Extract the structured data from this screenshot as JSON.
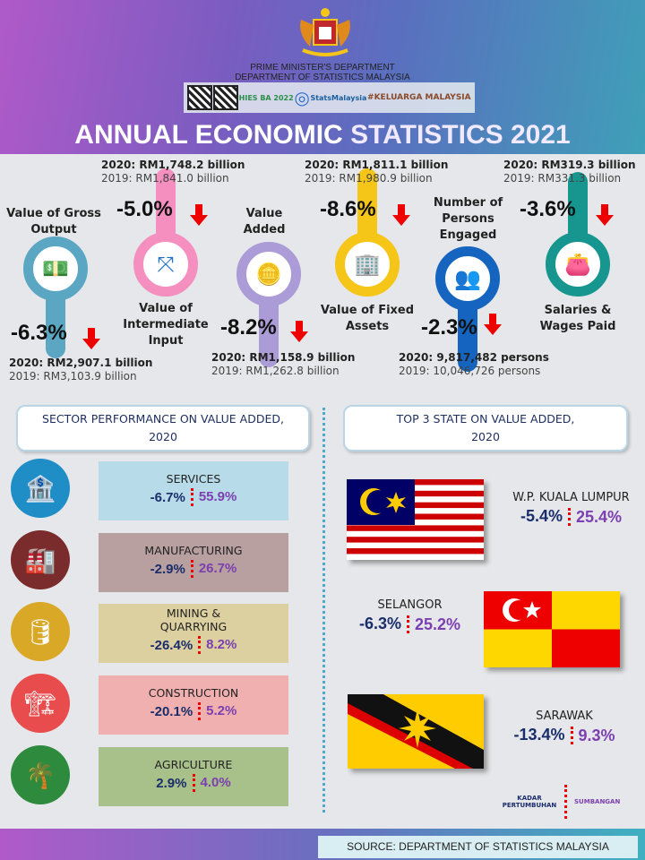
{
  "header": {
    "org_line1": "PRIME MINISTER'S DEPARTMENT",
    "org_line2": "DEPARTMENT OF STATISTICS MALAYSIA",
    "logos": [
      "HIES BA 2022",
      "StatsMalaysia",
      "#KELUARGA MALAYSIA"
    ],
    "title_a": "ANNUAL ECONOMIC",
    "title_b": "STATISTICS 2021"
  },
  "indicators": [
    {
      "label": "Value of Gross Output",
      "change": "-6.3%",
      "v2020": "2020: RM2,907.1 billion",
      "v2019": "2019: RM3,103.9 billion",
      "color": "#5ba7c3"
    },
    {
      "label": "Value of Intermediate Input",
      "change": "-5.0%",
      "v2020": "2020: RM1,748.2 billion",
      "v2019": "2019: RM1,841.0 billion",
      "color": "#f48fbf"
    },
    {
      "label": "Value Added",
      "change": "-8.2%",
      "v2020": "2020: RM1,158.9 billion",
      "v2019": "2019: RM1,262.8 billion",
      "color": "#ab9bd6"
    },
    {
      "label": "Value of Fixed Assets",
      "change": "-8.6%",
      "v2020": "2020: RM1,811.1 billion",
      "v2019": "2019: RM1,980.9 billion",
      "color": "#f5c518"
    },
    {
      "label": "Number of Persons Engaged",
      "change": "-2.3%",
      "v2020": "2020: 9,817,482 persons",
      "v2019": "2019: 10,046,726 persons",
      "color": "#1565c0"
    },
    {
      "label": "Salaries & Wages Paid",
      "change": "-3.6%",
      "v2020": "2020: RM319.3 billion",
      "v2019": "2019: RM331.3 billion",
      "color": "#16968f"
    }
  ],
  "sector": {
    "title": "SECTOR PERFORMANCE ON VALUE ADDED,",
    "year": "2020",
    "items": [
      {
        "name": "SERVICES",
        "growth": "-6.7%",
        "share": "55.9%"
      },
      {
        "name": "MANUFACTURING",
        "growth": "-2.9%",
        "share": "26.7%"
      },
      {
        "name": "MINING & QUARRYING",
        "growth": "-26.4%",
        "share": "8.2%"
      },
      {
        "name": "CONSTRUCTION",
        "growth": "-20.1%",
        "share": "5.2%"
      },
      {
        "name": "AGRICULTURE",
        "growth": "2.9%",
        "share": "4.0%"
      }
    ]
  },
  "states": {
    "title": "TOP 3 STATE  ON VALUE ADDED,",
    "year": "2020",
    "items": [
      {
        "name": "W.P. KUALA LUMPUR",
        "growth": "-5.4%",
        "share": "25.4%"
      },
      {
        "name": "SELANGOR",
        "growth": "-6.3%",
        "share": "25.2%"
      },
      {
        "name": "SARAWAK",
        "growth": "-13.4%",
        "share": "9.3%"
      }
    ]
  },
  "legend": {
    "growth": "KADAR PERTUMBUHAN",
    "share": "SUMBANGAN"
  },
  "source": "SOURCE: DEPARTMENT OF STATISTICS MALAYSIA"
}
